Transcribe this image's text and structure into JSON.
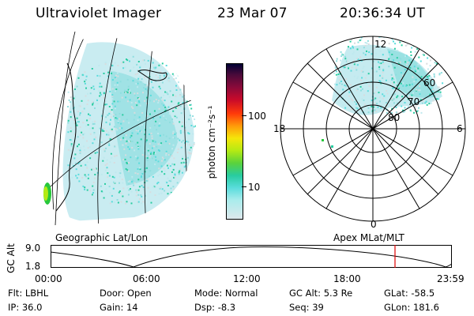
{
  "header": {
    "instrument": "Ultraviolet Imager",
    "date": "23 Mar 07",
    "time": "20:36:34 UT"
  },
  "colorbar": {
    "label": "photon cm⁻²s⁻¹",
    "ticks": [
      "100",
      "10"
    ],
    "colors": [
      "#000033",
      "#4a0a3a",
      "#8a0a3a",
      "#c80a2a",
      "#ff3a0a",
      "#ff9a0a",
      "#f5e60a",
      "#b4ea14",
      "#5ad23c",
      "#28cca0",
      "#5adcdc",
      "#aaecec",
      "#dde8ec"
    ]
  },
  "panels": {
    "geographic_caption": "Geographic Lat/Lon",
    "apex_caption": "Apex  MLat/MLT",
    "mlt_labels": {
      "top": "12",
      "bottom": "0",
      "left": "18",
      "right": "6"
    },
    "mlat_labels": [
      "60",
      "70",
      "80"
    ]
  },
  "timeline": {
    "ylabel": "GC Alt",
    "ticks_y": [
      "9.0",
      "1.8"
    ],
    "ticks_x": [
      "00:00",
      "06:00",
      "12:00",
      "18:00",
      "23:59"
    ]
  },
  "params": {
    "flt_label": "Flt:",
    "flt_value": "LBHL",
    "door_label": "Door:",
    "door_value": "Open",
    "mode_label": "Mode:",
    "mode_value": "Normal",
    "gcalt_label": "GC Alt:",
    "gcalt_value": "5.3 Re",
    "glat_label": "GLat:",
    "glat_value": "-58.5",
    "ip_label": "IP:",
    "ip_value": "36.0",
    "gain_label": "Gain:",
    "gain_value": "14",
    "dsp_label": "Dsp:",
    "dsp_value": "-8.3",
    "seq_label": "Seq:",
    "seq_value": "39",
    "glon_label": "GLon:",
    "glon_value": "181.6"
  },
  "accent_color": "#e00000"
}
